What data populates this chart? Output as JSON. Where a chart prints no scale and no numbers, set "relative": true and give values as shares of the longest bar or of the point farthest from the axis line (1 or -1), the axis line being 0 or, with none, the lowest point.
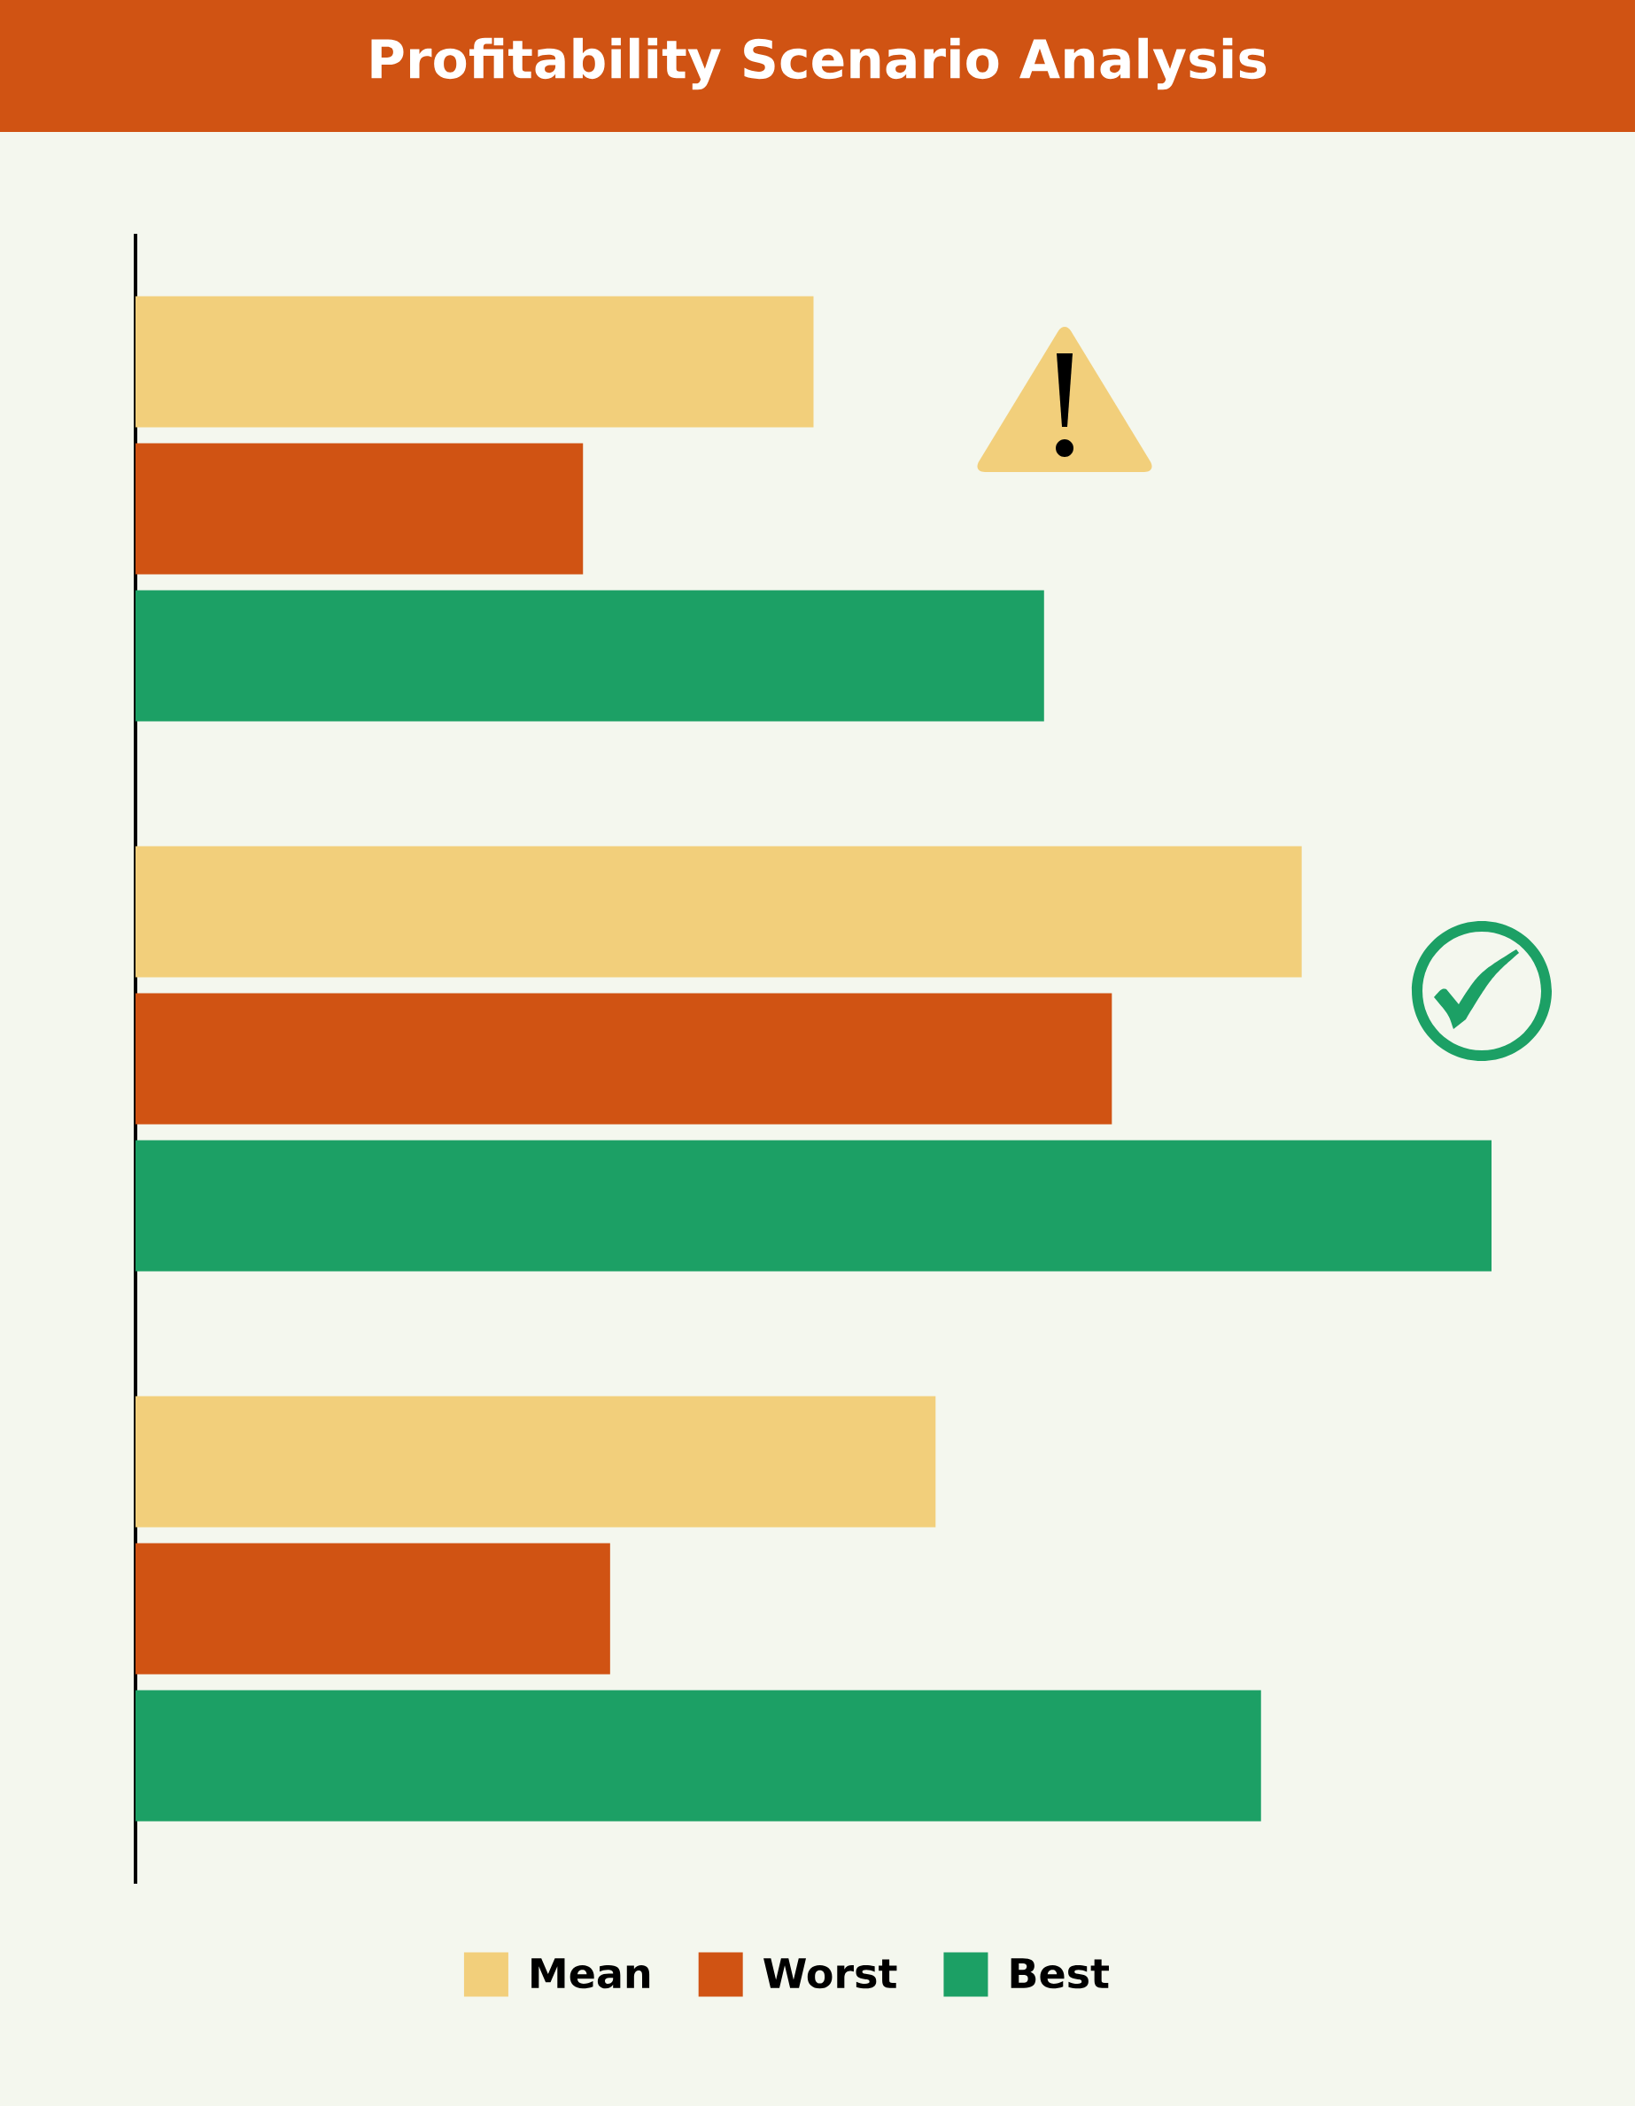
{
  "chart_data": {
    "type": "bar",
    "orientation": "horizontal",
    "relative": true,
    "title": "Profitability Scenario Analysis",
    "categories": [
      null,
      null,
      null
    ],
    "series": [
      {
        "name": "Mean",
        "color": "#f2cf7b",
        "values": [
          0.5,
          0.86,
          0.59
        ]
      },
      {
        "name": "Worst",
        "color": "#d05313",
        "values": [
          0.33,
          0.72,
          0.35
        ]
      },
      {
        "name": "Best",
        "color": "#1ca065",
        "values": [
          0.67,
          1,
          0.83
        ]
      }
    ],
    "legend": "bottom"
  }
}
